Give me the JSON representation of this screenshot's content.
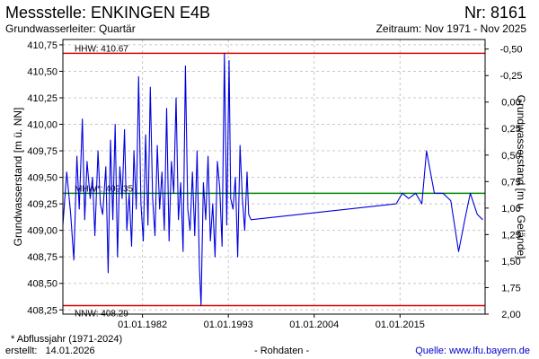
{
  "header": {
    "title": "Messstelle: ENKINGEN E4B",
    "number": "Nr: 8161",
    "subtitle": "Grundwasserleiter: Quartär",
    "period": "Zeitraum: Nov 1971 - Nov 2025"
  },
  "footer": {
    "note": "* Abflussjahr (1971-2024)",
    "created_label": "erstellt:",
    "created_date": "14.01.2026",
    "raw": "- Rohdaten -",
    "source": "Quelle: www.lfu.bayern.de"
  },
  "colors": {
    "series": "#0000dd",
    "hhw_line": "#dd0000",
    "nnw_line": "#dd0000",
    "mhw_line": "#008800",
    "grid": "#c8c8c8"
  },
  "chart_data": {
    "type": "line",
    "ylabel_left": "Grundwasserstand [m ü. NN]",
    "ylabel_right": "Grundwasserstand [m u. Gelände]",
    "xlim": [
      1971.8,
      2025.9
    ],
    "ylim": [
      408.21,
      410.8
    ],
    "ylim_right": [
      -0.59,
      2.0
    ],
    "grid": true,
    "x_ticks": [
      {
        "value": 1982.0,
        "label": "01.01.1982"
      },
      {
        "value": 1993.0,
        "label": "01.01.1993"
      },
      {
        "value": 2004.0,
        "label": "01.01.2004"
      },
      {
        "value": 2015.0,
        "label": "01.01.2015"
      }
    ],
    "y_ticks_left": [
      {
        "value": 408.25,
        "label": "408,25"
      },
      {
        "value": 408.5,
        "label": "408,50"
      },
      {
        "value": 408.75,
        "label": "408,75"
      },
      {
        "value": 409.0,
        "label": "409,00"
      },
      {
        "value": 409.25,
        "label": "409,25"
      },
      {
        "value": 409.5,
        "label": "409,50"
      },
      {
        "value": 409.75,
        "label": "409,75"
      },
      {
        "value": 410.0,
        "label": "410,00"
      },
      {
        "value": 410.25,
        "label": "410,25"
      },
      {
        "value": 410.5,
        "label": "410,50"
      },
      {
        "value": 410.75,
        "label": "410,75"
      }
    ],
    "y_ticks_right": [
      {
        "value": -0.5,
        "label": "-0,50"
      },
      {
        "value": -0.25,
        "label": "-0,25"
      },
      {
        "value": 0.0,
        "label": "0,00"
      },
      {
        "value": 0.25,
        "label": "0,25"
      },
      {
        "value": 0.5,
        "label": "0,50"
      },
      {
        "value": 0.75,
        "label": "0,75"
      },
      {
        "value": 1.0,
        "label": "1,00"
      },
      {
        "value": 1.25,
        "label": "1,25"
      },
      {
        "value": 1.5,
        "label": "1,50"
      },
      {
        "value": 1.75,
        "label": "1,75"
      },
      {
        "value": 2.0,
        "label": "2,00"
      }
    ],
    "reference_lines": [
      {
        "key": "hhw",
        "value": 410.67,
        "label": "HHW: 410.67"
      },
      {
        "key": "mhw",
        "value": 409.35,
        "label": "MHW*: 409.35"
      },
      {
        "key": "nnw",
        "value": 408.29,
        "label": "NNW: 408.29"
      }
    ],
    "series": [
      {
        "x": [
          1971.8,
          1972.3,
          1972.8,
          1973.2,
          1973.6,
          1973.9,
          1974.3,
          1974.6,
          1974.9,
          1975.3,
          1975.6,
          1975.9,
          1976.3,
          1976.6,
          1976.9,
          1977.3,
          1977.6,
          1977.9,
          1978.2,
          1978.5,
          1978.8,
          1979.1,
          1979.4,
          1979.7,
          1980.0,
          1980.3,
          1980.6,
          1980.9,
          1981.2,
          1981.5,
          1981.8,
          1982.1,
          1982.4,
          1982.7,
          1983.0,
          1983.3,
          1983.6,
          1983.9,
          1984.2,
          1984.5,
          1984.8,
          1985.1,
          1985.4,
          1985.7,
          1986.0,
          1986.3,
          1986.6,
          1986.9,
          1987.2,
          1987.5,
          1987.8,
          1988.1,
          1988.4,
          1988.7,
          1989.0,
          1989.3,
          1989.5,
          1989.8,
          1990.1,
          1990.4,
          1990.7,
          1991.0,
          1991.3,
          1991.6,
          1991.9,
          1992.2,
          1992.5,
          1992.8,
          1993.1,
          1993.3,
          1993.6,
          1993.9,
          1994.2,
          1994.5,
          1994.8,
          1995.1,
          1995.4,
          1995.6,
          1995.9,
          2014.5,
          2015.3,
          2016.1,
          2017.0,
          2017.8,
          2018.4,
          2019.4,
          2020.5,
          2021.5,
          2022.5,
          2023.3,
          2024.0,
          2024.9,
          2025.6
        ],
        "y": [
          409.05,
          409.55,
          409.15,
          408.72,
          409.7,
          409.2,
          410.05,
          409.1,
          409.65,
          409.3,
          409.5,
          408.95,
          409.75,
          409.25,
          409.15,
          409.6,
          408.6,
          409.85,
          409.1,
          410.0,
          408.75,
          409.6,
          409.3,
          409.95,
          409.0,
          409.35,
          408.85,
          409.75,
          409.2,
          410.45,
          409.25,
          408.9,
          409.9,
          409.05,
          410.35,
          409.3,
          408.95,
          409.8,
          409.2,
          409.55,
          409.0,
          410.15,
          408.9,
          409.65,
          409.35,
          410.25,
          409.1,
          409.45,
          408.8,
          410.55,
          409.2,
          409.0,
          409.55,
          408.95,
          409.75,
          408.65,
          408.29,
          409.45,
          409.1,
          409.7,
          408.9,
          409.25,
          408.75,
          409.65,
          409.4,
          408.85,
          410.67,
          409.05,
          410.6,
          409.3,
          409.2,
          409.5,
          408.75,
          409.8,
          409.3,
          409.0,
          409.55,
          409.15,
          409.1,
          409.25,
          409.35,
          409.3,
          409.35,
          409.25,
          409.75,
          409.35,
          409.35,
          409.28,
          408.8,
          409.1,
          409.35,
          409.15,
          409.1
        ]
      }
    ]
  }
}
